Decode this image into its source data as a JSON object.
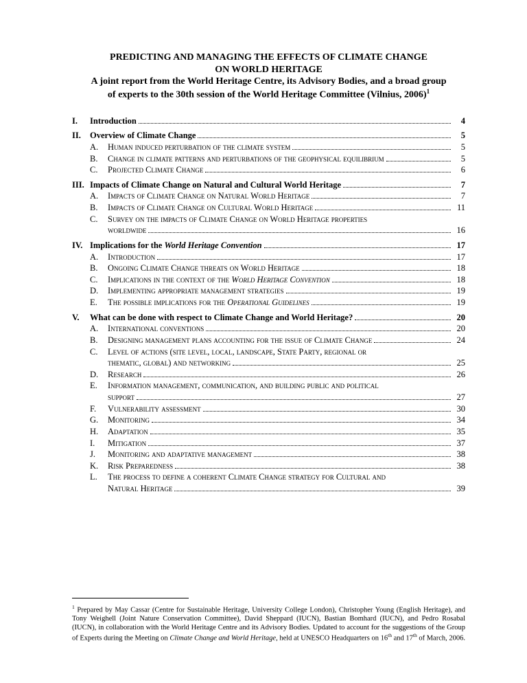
{
  "title": {
    "line1": "PREDICTING AND MANAGING THE EFFECTS OF CLIMATE CHANGE",
    "line2": "ON WORLD HERITAGE",
    "line3": "A joint report from the World Heritage Centre, its Advisory Bodies, and a broad group",
    "line4_pre": "of experts to the 30th session of the World Heritage Committee (Vilnius, 2006)",
    "sup": "1"
  },
  "toc": {
    "s1": {
      "num": "I.",
      "text": "Introduction",
      "page": "4"
    },
    "s2": {
      "num": "II.",
      "text": "Overview of Climate Change",
      "page": "5",
      "a": {
        "num": "A.",
        "text": "Human induced perturbation of the climate system",
        "page": "5"
      },
      "b": {
        "num": "B.",
        "text": "Change in climate patterns and perturbations of the geophysical equilibrium",
        "page": "5"
      },
      "c": {
        "num": "C.",
        "text": "Projected Climate Change",
        "page": "6"
      }
    },
    "s3": {
      "num": "III.",
      "text": "Impacts of Climate Change on Natural and Cultural World Heritage",
      "page": "7",
      "a": {
        "num": "A.",
        "text": "Impacts of Climate Change on Natural World Heritage",
        "page": "7"
      },
      "b": {
        "num": "B.",
        "text": "Impacts of Climate Change on Cultural World Heritage",
        "page": "11"
      },
      "c": {
        "num": "C.",
        "text1": "Survey on the impacts of Climate Change on World Heritage properties",
        "text2": "worldwide",
        "page": "16"
      }
    },
    "s4": {
      "num": "IV.",
      "text_pre": "Implications for the ",
      "text_it": "World Heritage Convention",
      "page": "17",
      "a": {
        "num": "A.",
        "text": "Introduction",
        "page": "17"
      },
      "b": {
        "num": "B.",
        "text": "Ongoing Climate Change threats on World Heritage",
        "page": "18"
      },
      "c": {
        "num": "C.",
        "text_pre": "Implications in the context of the ",
        "text_it": "World Heritage Convention",
        "page": "18"
      },
      "d": {
        "num": "D.",
        "text": "Implementing appropriate management strategies",
        "page": "19"
      },
      "e": {
        "num": "E.",
        "text_pre": "The possible implications for the ",
        "text_it": "Operational Guidelines",
        "page": "19"
      }
    },
    "s5": {
      "num": "V.",
      "text": "What can be done with respect to Climate Change and World Heritage?",
      "page": "20",
      "a": {
        "num": "A.",
        "text": "International conventions",
        "page": "20"
      },
      "b": {
        "num": "B.",
        "text": "Designing management plans accounting for the issue of Climate Change",
        "page": "24"
      },
      "c": {
        "num": "C.",
        "text1": "Level of actions (site level, local, landscape, State Party, regional or",
        "text2": "thematic, global) and networking",
        "page": "25"
      },
      "d": {
        "num": "D.",
        "text": "Research",
        "page": "26"
      },
      "e": {
        "num": "E.",
        "text1": "Information management, communication, and building public and political",
        "text2": "support",
        "page": "27"
      },
      "f": {
        "num": "F.",
        "text": "Vulnerability assessment",
        "page": "30"
      },
      "g": {
        "num": "G.",
        "text": "Monitoring",
        "page": "34"
      },
      "h": {
        "num": "H.",
        "text": "Adaptation",
        "page": "35"
      },
      "i": {
        "num": "I.",
        "text": "Mitigation",
        "page": "37"
      },
      "j": {
        "num": "J.",
        "text": "Monitoring and adaptative management",
        "page": "38"
      },
      "k": {
        "num": "K.",
        "text": "Risk Preparedness",
        "page": "38"
      },
      "l": {
        "num": "L.",
        "text1": "The process to define a coherent Climate Change strategy for Cultural and",
        "text2": "Natural Heritage",
        "page": "39"
      }
    }
  },
  "footnote": {
    "sup": "1",
    "text_a": " Prepared by May Cassar (Centre for Sustainable Heritage, University College London), Christopher Young (English Heritage), and Tony Weighell (Joint Nature Conservation Committee), David Sheppard (IUCN), Bastian Bomhard (IUCN), and Pedro Rosabal (IUCN), in collaboration with the World Heritage Centre and its Advisory Bodies. Updated to account for the suggestions of the Group of Experts during the Meeting on ",
    "text_it": "Climate Change and World Heritage",
    "text_b": ", held at UNESCO Headquarters on 16",
    "sup_th1": "th",
    "text_c": " and 17",
    "sup_th2": "th",
    "text_d": " of March, 2006."
  }
}
